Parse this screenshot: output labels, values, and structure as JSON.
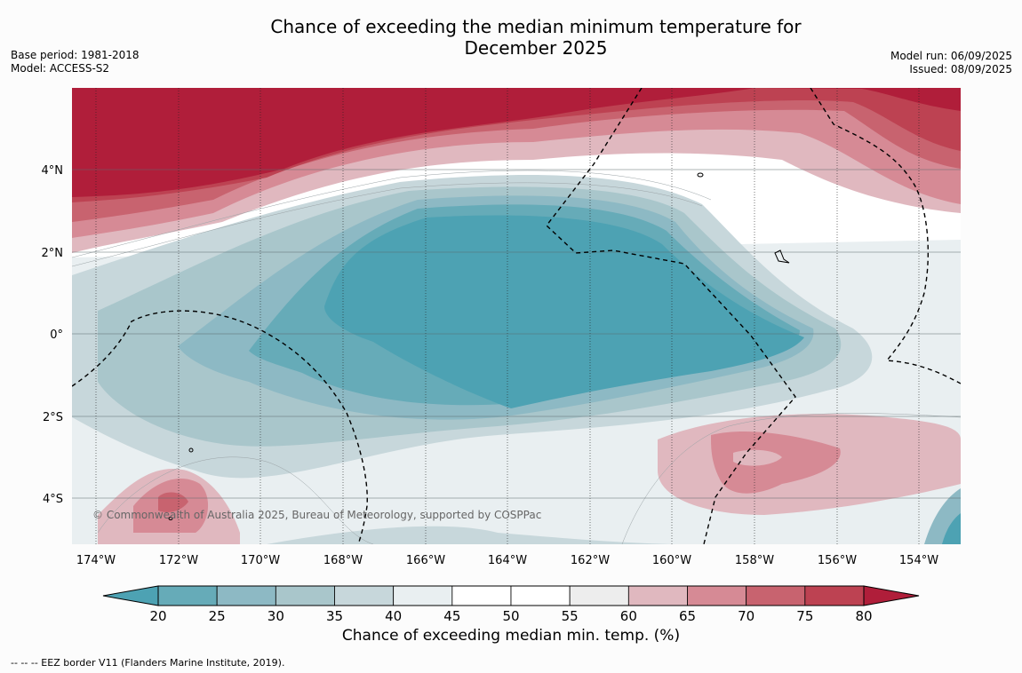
{
  "title": "Chance of exceeding the median minimum temperature for\nDecember 2025",
  "left_meta": {
    "base_period": "Base period: 1981-2018",
    "model": "Model: ACCESS-S2"
  },
  "right_meta": {
    "model_run": "Model run: 06/09/2025",
    "issued": "Issued: 08/09/2025"
  },
  "copyright": "© Commonwealth of Australia 2025, Bureau of Meteorology, supported by COSPPac",
  "map": {
    "lon_labels": [
      "174°W",
      "172°W",
      "170°W",
      "168°W",
      "166°W",
      "164°W",
      "162°W",
      "160°W",
      "158°W",
      "156°W",
      "154°W"
    ],
    "lat_labels": [
      "4°N",
      "2°N",
      "0°",
      "2°S",
      "4°S"
    ]
  },
  "colorbar": {
    "ticks": [
      "20",
      "25",
      "30",
      "35",
      "40",
      "45",
      "50",
      "55",
      "60",
      "65",
      "70",
      "75",
      "80"
    ],
    "colors": [
      "#66abb8",
      "#8db9c4",
      "#a9c6cb",
      "#c7d7db",
      "#e9eff1",
      "#ffffff",
      "#ffffff",
      "#ededed",
      "#e0b8bf",
      "#d68a95",
      "#c8636f",
      "#bd4252"
    ],
    "low_extend_color": "#4da2b3",
    "high_extend_color": "#b01e3a",
    "label": "Chance of exceeding median min. temp. (%)"
  },
  "footnote": "--  --  -- EEZ border V11 (Flanders Marine Institute, 2019)."
}
